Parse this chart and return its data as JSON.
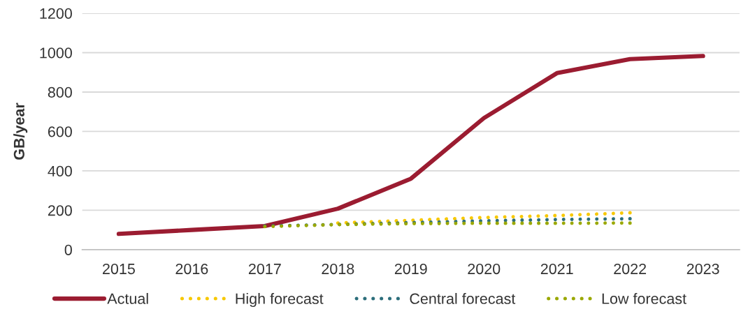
{
  "chart_data": {
    "type": "line",
    "ylabel": "GB/year",
    "categories": [
      "2015",
      "2016",
      "2017",
      "2018",
      "2019",
      "2020",
      "2021",
      "2022",
      "2023"
    ],
    "ylim": [
      0,
      1200
    ],
    "yticks": [
      0,
      200,
      400,
      600,
      800,
      1000,
      1200
    ],
    "grid": "y",
    "legend": "bottom",
    "series": [
      {
        "name": "Actual",
        "color": "#9b1c31",
        "line_style": "solid",
        "values": [
          80,
          100,
          120,
          208,
          360,
          668,
          896,
          967,
          983
        ]
      },
      {
        "name": "High forecast",
        "color": "#f7c800",
        "line_style": "dotted",
        "values": [
          null,
          null,
          null,
          135,
          149,
          163,
          173,
          187,
          null
        ]
      },
      {
        "name": "Central forecast",
        "color": "#2c6e7b",
        "line_style": "dotted",
        "values": [
          null,
          null,
          120,
          128,
          137,
          146,
          153,
          157,
          null
        ]
      },
      {
        "name": "Low forecast",
        "color": "#9aa800",
        "line_style": "dotted",
        "values": [
          null,
          null,
          117,
          127,
          132,
          134,
          134,
          135,
          null
        ]
      }
    ]
  }
}
